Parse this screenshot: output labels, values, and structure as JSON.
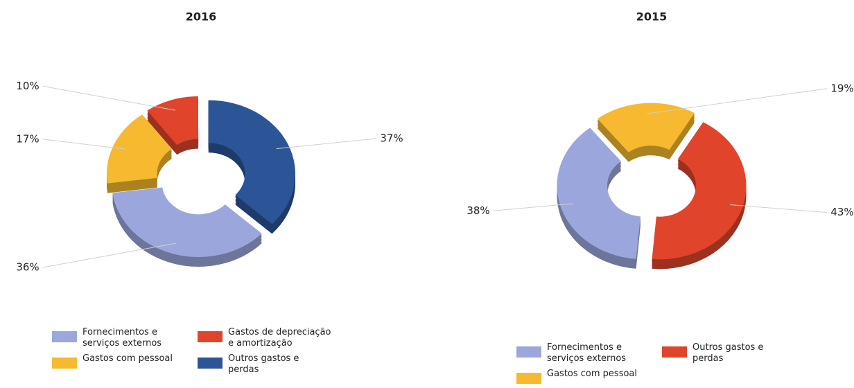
{
  "chart_data": [
    {
      "type": "donut",
      "title": "2016",
      "categories": [
        "Fornecimentos e serviços externos",
        "Gastos com pessoal",
        "Gastos de depreciação e amortização",
        "Outros gastos e perdas"
      ],
      "values": [
        36,
        17,
        10,
        37
      ],
      "value_labels": [
        "36%",
        "17%",
        "10%",
        "37%"
      ],
      "colors": [
        "#9ba7dc",
        "#f6b92f",
        "#e0452b",
        "#2b5597"
      ]
    },
    {
      "type": "donut",
      "title": "2015",
      "categories": [
        "Fornecimentos e serviços externos",
        "Gastos com pessoal",
        "Outros gastos e perdas"
      ],
      "values": [
        38,
        19,
        43
      ],
      "value_labels": [
        "38%",
        "19%",
        "43%"
      ],
      "colors": [
        "#9ba7dc",
        "#f6b92f",
        "#e0452b"
      ]
    }
  ]
}
